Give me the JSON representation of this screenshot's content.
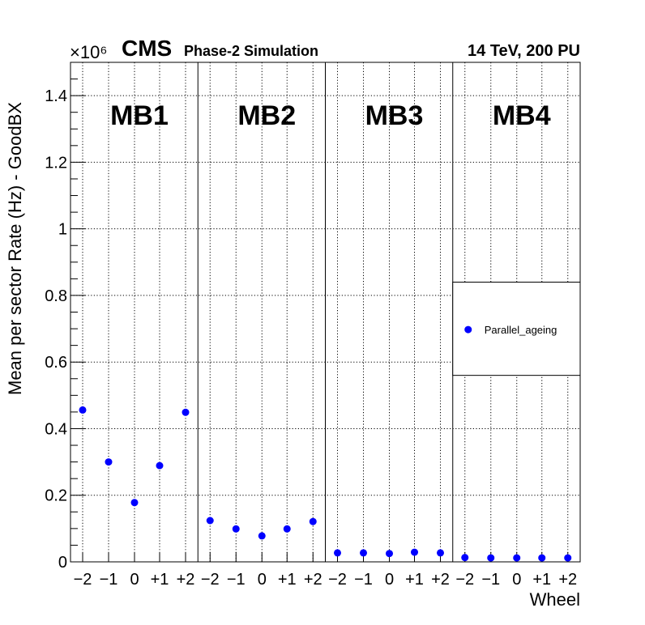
{
  "chart_data": {
    "type": "scatter",
    "header": {
      "experiment": "CMS",
      "subtitle": "Phase-2 Simulation",
      "energy_label": "14 TeV, 200 PU"
    },
    "xlabel": "Wheel",
    "ylabel": "Mean per sector Rate (Hz) - GoodBX",
    "y_exponent_label": "×10⁶",
    "ylim": [
      0,
      1.5
    ],
    "y_ticks": [
      0,
      0.2,
      0.4,
      0.6,
      0.8,
      1.0,
      1.2,
      1.4
    ],
    "y_tick_labels": [
      "0",
      "0.2",
      "0.4",
      "0.6",
      "0.8",
      "1",
      "1.2",
      "1.4"
    ],
    "grid": true,
    "wheel_tick_labels": [
      "−2",
      "−1",
      "0",
      "+1",
      "+2"
    ],
    "stations": [
      "MB1",
      "MB2",
      "MB3",
      "MB4"
    ],
    "legend": {
      "position": "right-middle",
      "entries": [
        "Parallel_ageing"
      ]
    },
    "series": [
      {
        "name": "Parallel_ageing",
        "color": "#0000ff",
        "values_by_station": [
          [
            0.456,
            0.3,
            0.178,
            0.289,
            0.449
          ],
          [
            0.124,
            0.099,
            0.078,
            0.099,
            0.121
          ],
          [
            0.027,
            0.027,
            0.025,
            0.029,
            0.027
          ],
          [
            0.013,
            0.012,
            0.012,
            0.012,
            0.012
          ]
        ]
      }
    ]
  }
}
